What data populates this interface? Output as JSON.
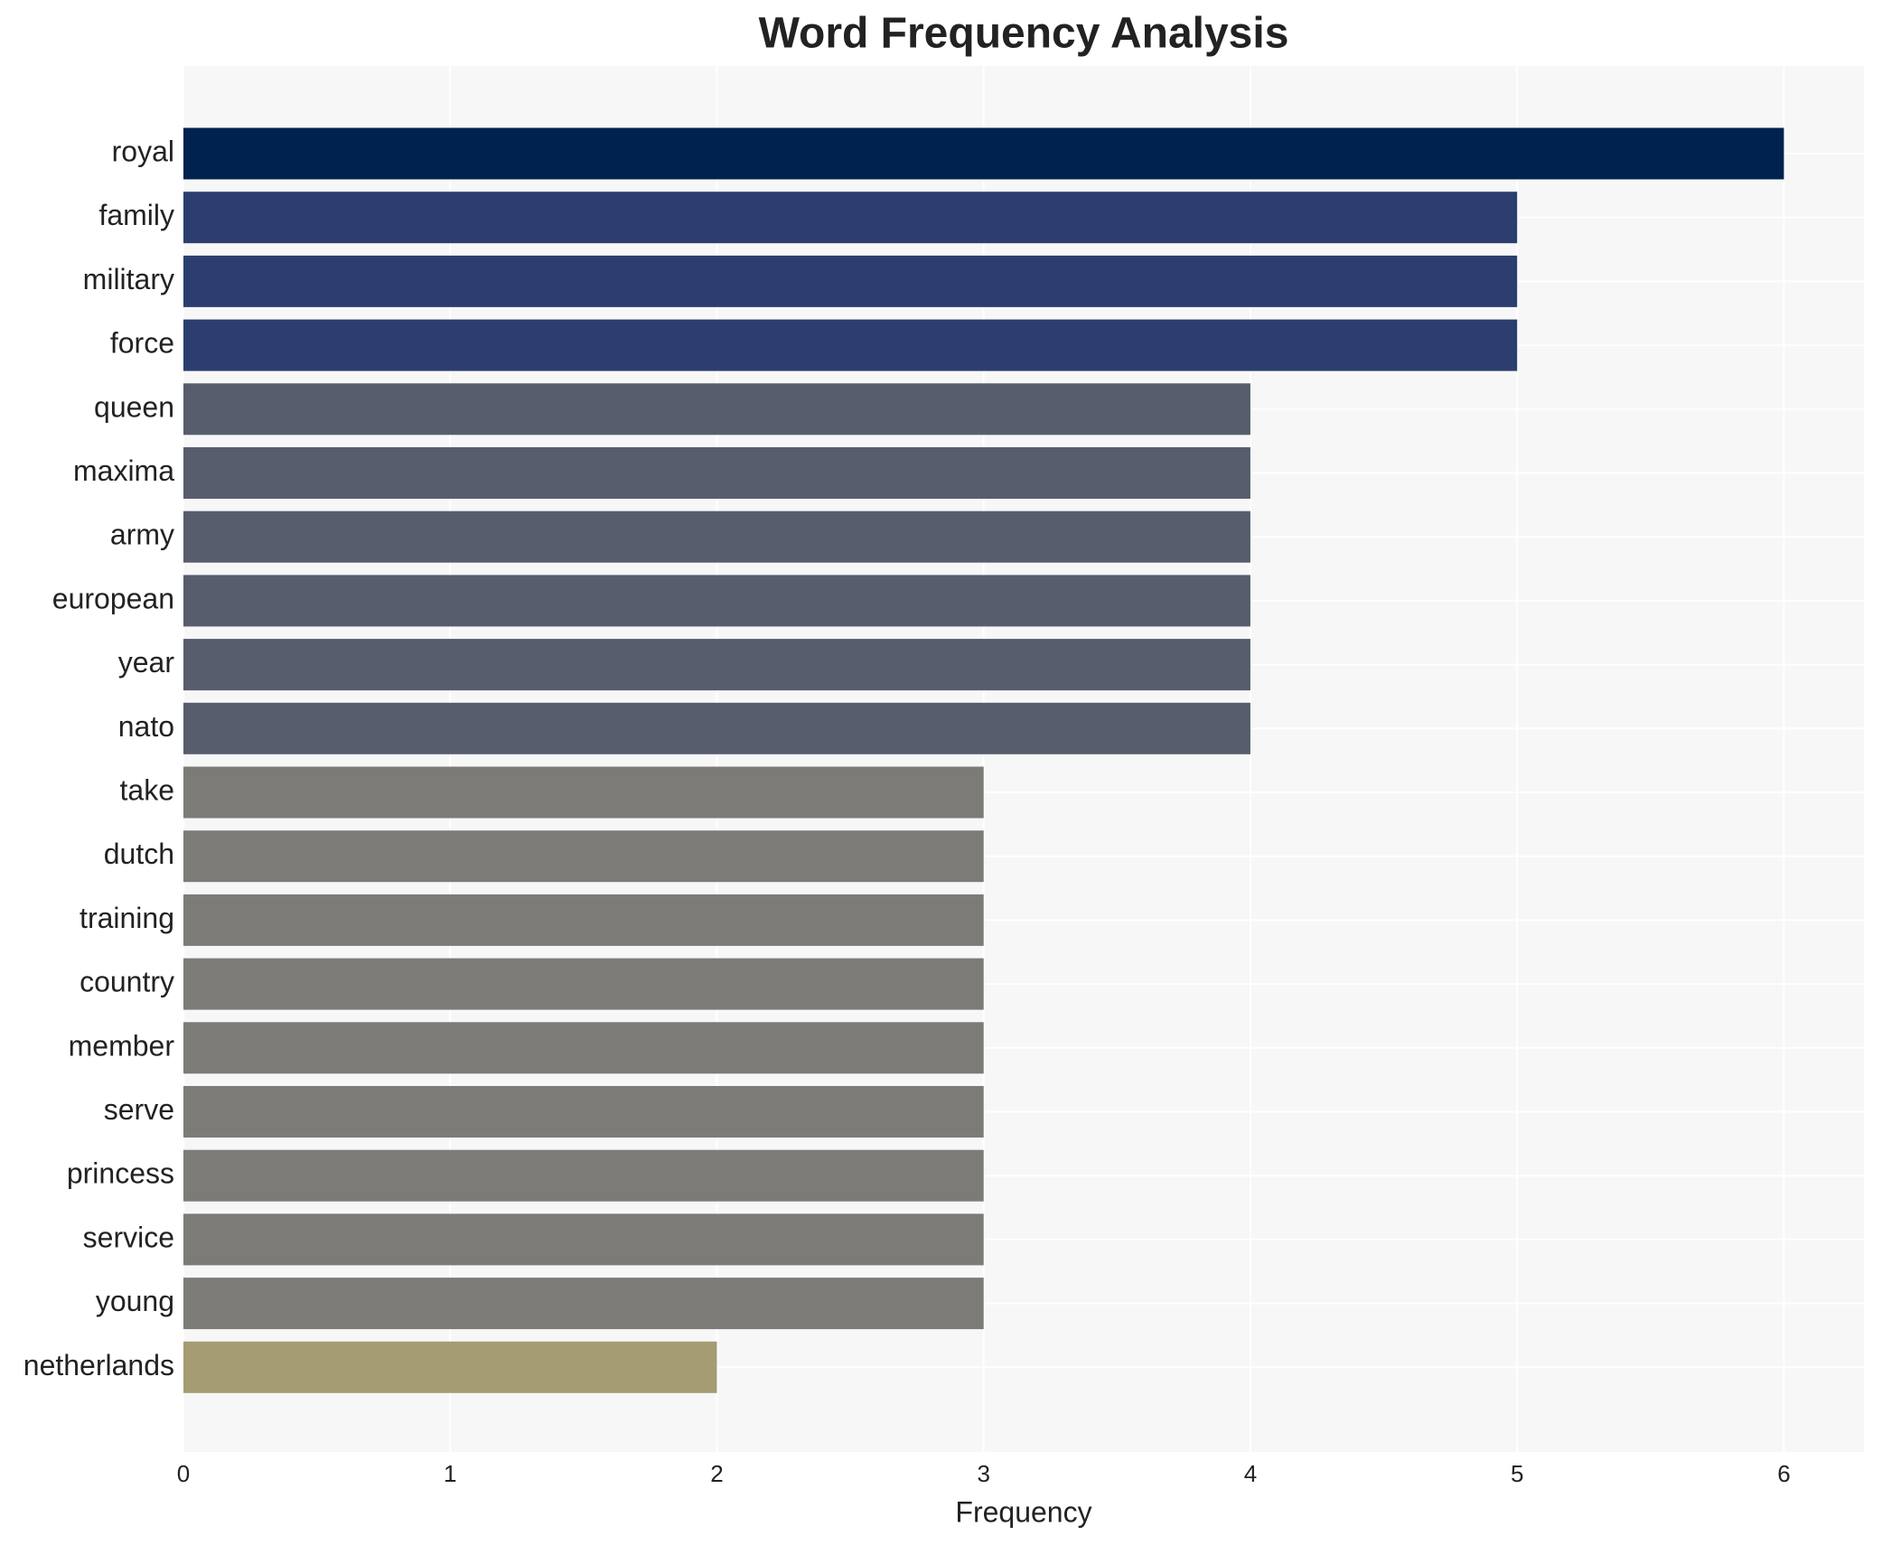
{
  "chart_data": {
    "type": "bar",
    "orientation": "horizontal",
    "title": "Word Frequency Analysis",
    "x_label": "Frequency",
    "categories": [
      "royal",
      "family",
      "military",
      "force",
      "queen",
      "maxima",
      "army",
      "european",
      "year",
      "nato",
      "take",
      "dutch",
      "training",
      "country",
      "member",
      "serve",
      "princess",
      "service",
      "young",
      "netherlands"
    ],
    "values": [
      6,
      5,
      5,
      5,
      4,
      4,
      4,
      4,
      4,
      4,
      3,
      3,
      3,
      3,
      3,
      3,
      3,
      3,
      3,
      2
    ],
    "colors": [
      "#00224e",
      "#2c3e6e",
      "#2c3e6e",
      "#2c3e6e",
      "#575d6d",
      "#575d6d",
      "#575d6d",
      "#575d6d",
      "#575d6d",
      "#575d6d",
      "#7c7b78",
      "#7c7b78",
      "#7c7b78",
      "#7c7b78",
      "#7c7b78",
      "#7c7b78",
      "#7c7b78",
      "#7c7b78",
      "#7c7b78",
      "#a59c74"
    ],
    "xlim": [
      0,
      6.3
    ],
    "xticks": [
      0,
      1,
      2,
      3,
      4,
      5,
      6
    ],
    "grid": true
  }
}
